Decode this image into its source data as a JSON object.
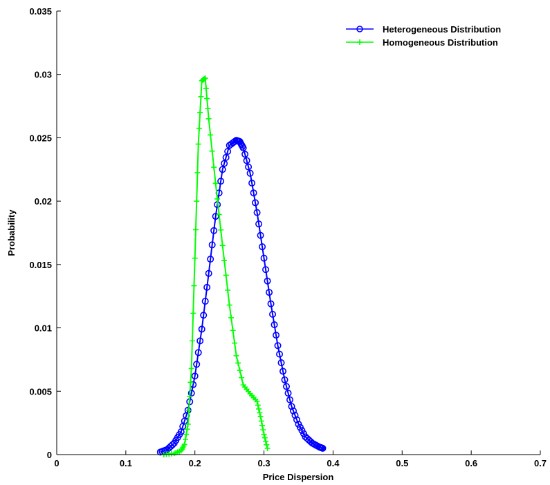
{
  "chart_data": {
    "type": "line",
    "title": "",
    "xlabel": "Price Dispersion",
    "ylabel": "Probability",
    "xlim": [
      0,
      0.7
    ],
    "ylim": [
      0,
      0.035
    ],
    "xticks": [
      "0",
      "0.1",
      "0.2",
      "0.3",
      "0.4",
      "0.5",
      "0.6",
      "0.7"
    ],
    "yticks": [
      "0",
      "0.005",
      "0.01",
      "0.015",
      "0.02",
      "0.025",
      "0.03",
      "0.035"
    ],
    "grid": false,
    "legend_position": "top-right",
    "series": [
      {
        "name": "Heterogeneous Distribution",
        "marker": "circle",
        "color": "#0000ff",
        "x": [
          0.15,
          0.16,
          0.17,
          0.18,
          0.19,
          0.2,
          0.21,
          0.22,
          0.23,
          0.24,
          0.25,
          0.26,
          0.265,
          0.27,
          0.28,
          0.29,
          0.3,
          0.31,
          0.32,
          0.33,
          0.34,
          0.35,
          0.36,
          0.37,
          0.38,
          0.385
        ],
        "y": [
          0.0002,
          0.0004,
          0.0009,
          0.0018,
          0.0035,
          0.0062,
          0.0099,
          0.0143,
          0.0188,
          0.0225,
          0.0244,
          0.0248,
          0.0247,
          0.0242,
          0.0222,
          0.0191,
          0.0155,
          0.0119,
          0.0086,
          0.0059,
          0.0038,
          0.0024,
          0.0014,
          0.0009,
          0.0006,
          0.0005
        ]
      },
      {
        "name": "Homogeneous Distribution",
        "marker": "plus",
        "color": "#00ff00",
        "x": [
          0.155,
          0.17,
          0.18,
          0.185,
          0.19,
          0.195,
          0.2,
          0.205,
          0.21,
          0.215,
          0.22,
          0.23,
          0.24,
          0.25,
          0.26,
          0.27,
          0.28,
          0.29,
          0.295,
          0.3,
          0.305
        ],
        "y": [
          0.0,
          0.0001,
          0.0003,
          0.0008,
          0.0024,
          0.0068,
          0.0155,
          0.0245,
          0.0295,
          0.0297,
          0.0265,
          0.0214,
          0.0165,
          0.0118,
          0.0078,
          0.0055,
          0.0048,
          0.0042,
          0.003,
          0.0016,
          0.0005
        ]
      }
    ]
  }
}
